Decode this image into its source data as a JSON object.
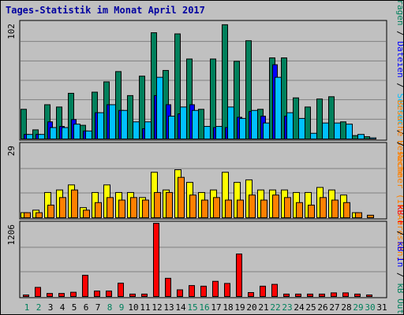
{
  "title": "Tages-Statistik im Monat April 2017",
  "legend": {
    "panel1": [
      {
        "text": "Anfragen",
        "color": "#00805c"
      },
      {
        "text": " / ",
        "color": "#000000"
      },
      {
        "text": "Dateien",
        "color": "#0000ff"
      },
      {
        "text": " / ",
        "color": "#000000"
      },
      {
        "text": "Seiten",
        "color": "#00c0ff"
      },
      {
        "text": " / ",
        "color": "#000000"
      },
      {
        "text": "Besuche",
        "color": "#ff8000"
      }
    ],
    "panel2": [
      {
        "text": "Besuche",
        "color": "#ff8000"
      },
      {
        "text": " / ",
        "color": "#000000"
      },
      {
        "text": "Rechner (IP-Adressen)",
        "color": "#ff8000"
      }
    ],
    "panel3": [
      {
        "text": "kB F",
        "color": "#ff0000"
      },
      {
        "text": " / ",
        "color": "#000000"
      },
      {
        "text": "kB In",
        "color": "#0000ff"
      },
      {
        "text": " / ",
        "color": "#000000"
      },
      {
        "text": "kB Out",
        "color": "#00805c"
      }
    ]
  },
  "colors": {
    "anfragen": "#00805c",
    "dateien": "#0000ff",
    "seiten": "#00c0ff",
    "besuche": "#ffff00",
    "rechner": "#ff8000",
    "kb": "#ff0000",
    "weekend": "#00805c",
    "weekday": "#000000"
  },
  "chart_data": {
    "type": "bar",
    "categories": [
      "1",
      "2",
      "3",
      "4",
      "5",
      "6",
      "7",
      "8",
      "9",
      "10",
      "11",
      "12",
      "13",
      "14",
      "15",
      "16",
      "17",
      "18",
      "19",
      "20",
      "21",
      "22",
      "23",
      "24",
      "25",
      "26",
      "27",
      "28",
      "29",
      "30",
      "31"
    ],
    "weekend_days": [
      1,
      2,
      8,
      9,
      15,
      16,
      22,
      23,
      29,
      30
    ],
    "panels": [
      {
        "ymax": 102,
        "ymax_label": "102",
        "series": [
          {
            "key": "anfragen",
            "values": [
              26,
              8,
              30,
              28,
              40,
              12,
              41,
              50,
              59,
              38,
              55,
              93,
              60,
              92,
              70,
              26,
              70,
              100,
              68,
              86,
              26,
              71,
              71,
              36,
              28,
              35,
              37,
              15,
              3,
              2,
              0
            ]
          },
          {
            "key": "dateien",
            "values": [
              4,
              4,
              15,
              11,
              17,
              7,
              23,
              30,
              25,
              0,
              9,
              38,
              30,
              22,
              30,
              0,
              10,
              10,
              19,
              24,
              20,
              65,
              20,
              0,
              0,
              0,
              0,
              0,
              0,
              0,
              0
            ]
          },
          {
            "key": "seiten",
            "values": [
              4,
              4,
              10,
              10,
              13,
              7,
              23,
              30,
              25,
              15,
              15,
              54,
              20,
              28,
              25,
              11,
              11,
              28,
              18,
              25,
              14,
              54,
              23,
              18,
              5,
              14,
              14,
              13,
              4,
              1,
              0
            ]
          }
        ]
      },
      {
        "ymax": 29,
        "ymax_label": "29",
        "series": [
          {
            "key": "besuche",
            "values": [
              2,
              3,
              10,
              11,
              13,
              4,
              10,
              13,
              10,
              10,
              8,
              18,
              11,
              19,
              14,
              10,
              11,
              18,
              14,
              15,
              11,
              11,
              11,
              10,
              10,
              12,
              11,
              9,
              2,
              0,
              0
            ]
          },
          {
            "key": "rechner",
            "values": [
              2,
              2,
              5,
              8,
              11,
              3,
              6,
              8,
              7,
              8,
              7,
              10,
              10,
              16,
              9,
              7,
              8,
              7,
              7,
              9,
              7,
              9,
              8,
              6,
              5,
              8,
              7,
              6,
              2,
              1,
              0
            ]
          }
        ]
      },
      {
        "ymax": 1206,
        "ymax_label": "1206",
        "series": [
          {
            "key": "kb",
            "values": [
              25,
              150,
              50,
              50,
              70,
              350,
              90,
              90,
              220,
              40,
              40,
              1206,
              300,
              110,
              180,
              170,
              250,
              215,
              700,
              65,
              170,
              200,
              40,
              40,
              40,
              40,
              60,
              60,
              40,
              25,
              0
            ]
          }
        ]
      }
    ]
  }
}
